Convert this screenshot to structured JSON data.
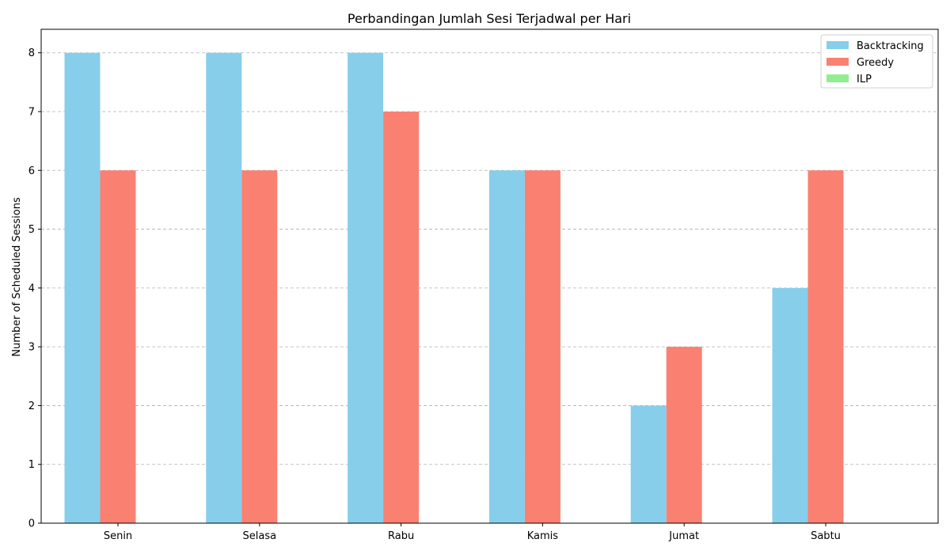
{
  "chart_data": {
    "type": "bar",
    "title": "Perbandingan Jumlah Sesi Terjadwal per Hari",
    "xlabel": "",
    "ylabel": "Number of Scheduled Sessions",
    "categories": [
      "Senin",
      "Selasa",
      "Rabu",
      "Kamis",
      "Jumat",
      "Sabtu"
    ],
    "series": [
      {
        "name": "Backtracking",
        "color": "#87CEEB",
        "values": [
          8,
          8,
          8,
          6,
          2,
          4
        ]
      },
      {
        "name": "Greedy",
        "color": "#FA8072",
        "values": [
          6,
          6,
          7,
          6,
          3,
          6
        ]
      },
      {
        "name": "ILP",
        "color": "#90EE90",
        "values": [
          0,
          0,
          0,
          0,
          0,
          0
        ]
      }
    ],
    "ylim": [
      0,
      8.4
    ],
    "yticks": [
      0,
      1,
      2,
      3,
      4,
      5,
      6,
      7,
      8
    ],
    "grid": "y-dashed",
    "legend_position": "top-right"
  }
}
